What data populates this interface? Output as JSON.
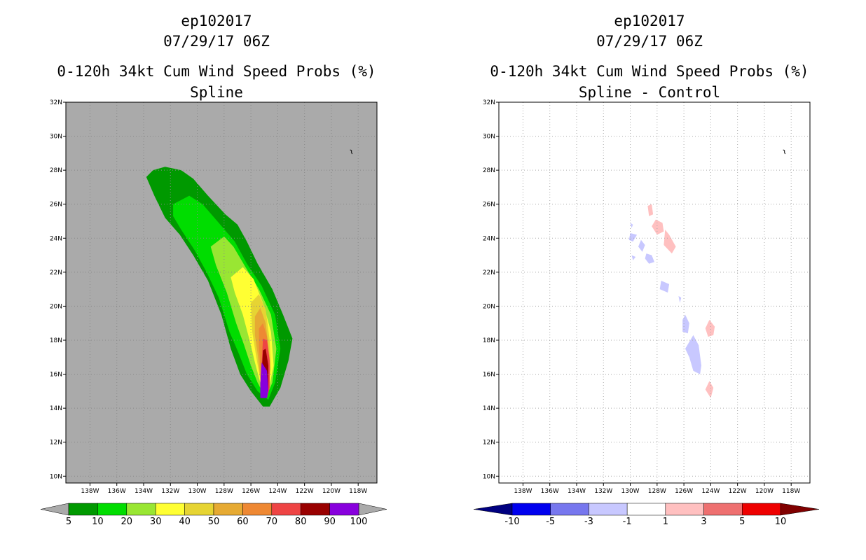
{
  "chart_data": [
    {
      "type": "heatmap",
      "title_line1": "ep102017",
      "title_line2": "07/29/17 06Z",
      "title_line3": "0-120h 34kt Cum Wind Speed Probs (%)",
      "subtitle": "Spline",
      "x_ticks": [
        "138W",
        "136W",
        "134W",
        "132W",
        "130W",
        "128W",
        "126W",
        "124W",
        "122W",
        "120W",
        "118W"
      ],
      "y_ticks": [
        "10N",
        "12N",
        "14N",
        "16N",
        "18N",
        "20N",
        "22N",
        "24N",
        "26N",
        "28N",
        "30N",
        "32N"
      ],
      "xlim_deg_west": [
        139.8,
        116.6
      ],
      "ylim_deg_north": [
        9.6,
        32
      ],
      "colorbar_labels": [
        "5",
        "10",
        "20",
        "30",
        "40",
        "50",
        "60",
        "70",
        "80",
        "90",
        "100"
      ],
      "colorbar_colors": [
        "#009900",
        "#00dd00",
        "#99e633",
        "#ffff33",
        "#e6d433",
        "#e6aa33",
        "#ee8833",
        "#ee4444",
        "#990000",
        "#8800dd"
      ],
      "levels": [
        {
          "level": 5,
          "color": "#009900",
          "lonlat": [
            [
              -133.8,
              27.6
            ],
            [
              -133.3,
              28.0
            ],
            [
              -132.4,
              28.2
            ],
            [
              -131.2,
              28.0
            ],
            [
              -130.3,
              27.5
            ],
            [
              -129.2,
              26.5
            ],
            [
              -127.9,
              25.4
            ],
            [
              -127.0,
              24.8
            ],
            [
              -126.3,
              23.8
            ],
            [
              -125.5,
              22.5
            ],
            [
              -124.4,
              21.0
            ],
            [
              -123.6,
              19.5
            ],
            [
              -122.9,
              18.1
            ],
            [
              -123.2,
              16.8
            ],
            [
              -123.8,
              15.2
            ],
            [
              -124.6,
              14.1
            ],
            [
              -125.1,
              14.1
            ],
            [
              -126.0,
              15.0
            ],
            [
              -126.8,
              16.0
            ],
            [
              -127.5,
              17.5
            ],
            [
              -128.2,
              19.5
            ],
            [
              -129.2,
              21.5
            ],
            [
              -130.3,
              23.0
            ],
            [
              -131.3,
              24.2
            ],
            [
              -132.4,
              25.2
            ],
            [
              -133.2,
              26.5
            ]
          ]
        },
        {
          "level": 10,
          "color": "#00dd00",
          "lonlat": [
            [
              -131.8,
              26.0
            ],
            [
              -130.6,
              26.5
            ],
            [
              -129.6,
              26.0
            ],
            [
              -128.4,
              24.9
            ],
            [
              -127.2,
              23.8
            ],
            [
              -126.3,
              22.5
            ],
            [
              -125.2,
              21.2
            ],
            [
              -124.2,
              19.5
            ],
            [
              -123.8,
              17.5
            ],
            [
              -124.2,
              15.5
            ],
            [
              -124.7,
              14.5
            ],
            [
              -125.5,
              15.0
            ],
            [
              -126.3,
              16.0
            ],
            [
              -126.9,
              17.2
            ],
            [
              -127.6,
              18.5
            ],
            [
              -128.4,
              20.5
            ],
            [
              -129.3,
              22.0
            ],
            [
              -130.2,
              23.3
            ],
            [
              -131.2,
              24.5
            ],
            [
              -131.8,
              25.3
            ]
          ]
        },
        {
          "level": 20,
          "color": "#99e633",
          "lonlat": [
            [
              -129.0,
              23.5
            ],
            [
              -128.0,
              24.1
            ],
            [
              -127.3,
              23.5
            ],
            [
              -126.4,
              22.3
            ],
            [
              -125.4,
              21.0
            ],
            [
              -124.5,
              19.5
            ],
            [
              -124.1,
              17.5
            ],
            [
              -124.4,
              15.5
            ],
            [
              -124.9,
              14.6
            ],
            [
              -125.5,
              15.5
            ],
            [
              -126.0,
              16.5
            ],
            [
              -126.5,
              17.7
            ],
            [
              -127.1,
              19.0
            ],
            [
              -127.8,
              20.8
            ],
            [
              -128.6,
              22.4
            ]
          ]
        },
        {
          "level": 30,
          "color": "#ffff33",
          "lonlat": [
            [
              -127.5,
              21.7
            ],
            [
              -126.6,
              22.3
            ],
            [
              -125.8,
              21.6
            ],
            [
              -125.1,
              20.2
            ],
            [
              -124.5,
              18.5
            ],
            [
              -124.3,
              16.5
            ],
            [
              -124.7,
              15.0
            ],
            [
              -125.3,
              15.5
            ],
            [
              -125.7,
              16.7
            ],
            [
              -126.1,
              18.0
            ],
            [
              -126.6,
              19.5
            ],
            [
              -127.2,
              20.8
            ]
          ]
        },
        {
          "level": 40,
          "color": "#e6d433",
          "lonlat": [
            [
              -126.0,
              20.2
            ],
            [
              -125.4,
              20.7
            ],
            [
              -124.9,
              19.8
            ],
            [
              -124.6,
              18.0
            ],
            [
              -124.5,
              16.3
            ],
            [
              -124.8,
              15.0
            ],
            [
              -125.3,
              15.7
            ],
            [
              -125.6,
              17.0
            ],
            [
              -125.9,
              18.5
            ]
          ]
        },
        {
          "level": 50,
          "color": "#e6aa33",
          "lonlat": [
            [
              -125.7,
              19.4
            ],
            [
              -125.3,
              19.9
            ],
            [
              -124.9,
              19.0
            ],
            [
              -124.6,
              17.0
            ],
            [
              -124.6,
              15.5
            ],
            [
              -124.9,
              14.9
            ],
            [
              -125.3,
              15.8
            ],
            [
              -125.5,
              17.2
            ],
            [
              -125.7,
              18.3
            ]
          ]
        },
        {
          "level": 60,
          "color": "#ee8833",
          "lonlat": [
            [
              -125.4,
              18.7
            ],
            [
              -125.1,
              19.0
            ],
            [
              -124.8,
              18.2
            ],
            [
              -124.6,
              16.5
            ],
            [
              -124.7,
              15.0
            ],
            [
              -125.1,
              15.3
            ],
            [
              -125.3,
              16.5
            ],
            [
              -125.4,
              17.6
            ]
          ]
        },
        {
          "level": 70,
          "color": "#ee4444",
          "lonlat": [
            [
              -125.1,
              18.1
            ],
            [
              -124.8,
              18.0
            ],
            [
              -124.6,
              16.8
            ],
            [
              -124.6,
              15.2
            ],
            [
              -124.8,
              14.6
            ],
            [
              -125.2,
              15.1
            ],
            [
              -125.2,
              16.5
            ]
          ]
        },
        {
          "level": 80,
          "color": "#990000",
          "lonlat": [
            [
              -125.1,
              17.4
            ],
            [
              -124.9,
              17.5
            ],
            [
              -124.7,
              16.5
            ],
            [
              -124.7,
              15.0
            ],
            [
              -125.1,
              15.0
            ],
            [
              -125.2,
              16.0
            ]
          ]
        },
        {
          "level": 90,
          "color": "#8800dd",
          "lonlat": [
            [
              -125.2,
              16.7
            ],
            [
              -124.8,
              16.2
            ],
            [
              -124.7,
              15.1
            ],
            [
              -124.8,
              14.6
            ],
            [
              -125.3,
              14.6
            ],
            [
              -125.3,
              15.5
            ]
          ]
        }
      ]
    },
    {
      "type": "heatmap",
      "title_line1": "ep102017",
      "title_line2": "07/29/17 06Z",
      "title_line3": "0-120h 34kt Cum Wind Speed Probs (%)",
      "subtitle": "Spline - Control",
      "x_ticks": [
        "138W",
        "136W",
        "134W",
        "132W",
        "130W",
        "128W",
        "126W",
        "124W",
        "122W",
        "120W",
        "118W"
      ],
      "y_ticks": [
        "10N",
        "12N",
        "14N",
        "16N",
        "18N",
        "20N",
        "22N",
        "24N",
        "26N",
        "28N",
        "30N",
        "32N"
      ],
      "xlim_deg_west": [
        139.8,
        116.6
      ],
      "ylim_deg_north": [
        9.6,
        32
      ],
      "colorbar_labels": [
        "-10",
        "-5",
        "-3",
        "-1",
        "1",
        "3",
        "5",
        "10"
      ],
      "colorbar_colors": [
        "#000080",
        "#0000ee",
        "#7777ee",
        "#c8c8ff",
        "#ffffff",
        "#ffc0c0",
        "#ee7070",
        "#ee0000",
        "#800000"
      ],
      "positive_blobs": [
        {
          "color": "#ffc0c0",
          "lonlat": [
            [
              -128.7,
              25.9
            ],
            [
              -128.4,
              26.0
            ],
            [
              -128.3,
              25.4
            ],
            [
              -128.6,
              25.3
            ]
          ]
        },
        {
          "color": "#ffc0c0",
          "lonlat": [
            [
              -128.1,
              25.1
            ],
            [
              -127.6,
              24.9
            ],
            [
              -127.5,
              24.4
            ],
            [
              -128.0,
              24.2
            ],
            [
              -128.4,
              24.7
            ]
          ]
        },
        {
          "color": "#ffc0c0",
          "lonlat": [
            [
              -127.4,
              24.5
            ],
            [
              -127.1,
              24.2
            ],
            [
              -126.6,
              23.5
            ],
            [
              -126.9,
              23.1
            ],
            [
              -127.5,
              23.6
            ]
          ]
        },
        {
          "color": "#ffc0c0",
          "lonlat": [
            [
              -124.1,
              19.2
            ],
            [
              -123.7,
              18.8
            ],
            [
              -123.8,
              18.3
            ],
            [
              -124.2,
              18.2
            ],
            [
              -124.4,
              18.7
            ]
          ]
        },
        {
          "color": "#ffc0c0",
          "lonlat": [
            [
              -124.1,
              15.6
            ],
            [
              -123.8,
              15.2
            ],
            [
              -124.0,
              14.6
            ],
            [
              -124.4,
              15.1
            ]
          ]
        }
      ],
      "negative_blobs": [
        {
          "color": "#c8c8ff",
          "lonlat": [
            [
              -130.0,
              24.3
            ],
            [
              -129.5,
              24.2
            ],
            [
              -129.8,
              23.8
            ],
            [
              -130.1,
              23.9
            ]
          ]
        },
        {
          "color": "#c8c8ff",
          "lonlat": [
            [
              -129.2,
              23.9
            ],
            [
              -128.9,
              23.6
            ],
            [
              -129.1,
              23.2
            ],
            [
              -129.4,
              23.5
            ]
          ]
        },
        {
          "color": "#c8c8ff",
          "lonlat": [
            [
              -128.8,
              23.1
            ],
            [
              -128.4,
              23.0
            ],
            [
              -128.2,
              22.6
            ],
            [
              -128.6,
              22.5
            ],
            [
              -128.9,
              22.8
            ]
          ]
        },
        {
          "color": "#c8c8ff",
          "lonlat": [
            [
              -129.9,
              23.0
            ],
            [
              -129.6,
              22.9
            ],
            [
              -129.8,
              22.7
            ]
          ]
        },
        {
          "color": "#c8c8ff",
          "lonlat": [
            [
              -127.7,
              21.5
            ],
            [
              -127.1,
              21.3
            ],
            [
              -127.2,
              20.8
            ],
            [
              -127.8,
              21.0
            ]
          ]
        },
        {
          "color": "#c8c8ff",
          "lonlat": [
            [
              -126.4,
              20.6
            ],
            [
              -126.2,
              20.5
            ],
            [
              -126.3,
              20.2
            ]
          ]
        },
        {
          "color": "#c8c8ff",
          "lonlat": [
            [
              -125.9,
              19.5
            ],
            [
              -125.6,
              19.0
            ],
            [
              -125.7,
              18.4
            ],
            [
              -126.1,
              18.5
            ],
            [
              -126.1,
              19.2
            ]
          ]
        },
        {
          "color": "#c8c8ff",
          "lonlat": [
            [
              -125.3,
              18.3
            ],
            [
              -124.9,
              17.7
            ],
            [
              -124.7,
              16.5
            ],
            [
              -124.8,
              16.0
            ],
            [
              -125.3,
              16.2
            ],
            [
              -125.6,
              17.0
            ],
            [
              -125.9,
              17.5
            ]
          ]
        },
        {
          "color": "#c8c8ff",
          "lonlat": [
            [
              -130.0,
              24.9
            ],
            [
              -129.8,
              24.8
            ],
            [
              -129.9,
              24.6
            ]
          ]
        }
      ]
    }
  ]
}
